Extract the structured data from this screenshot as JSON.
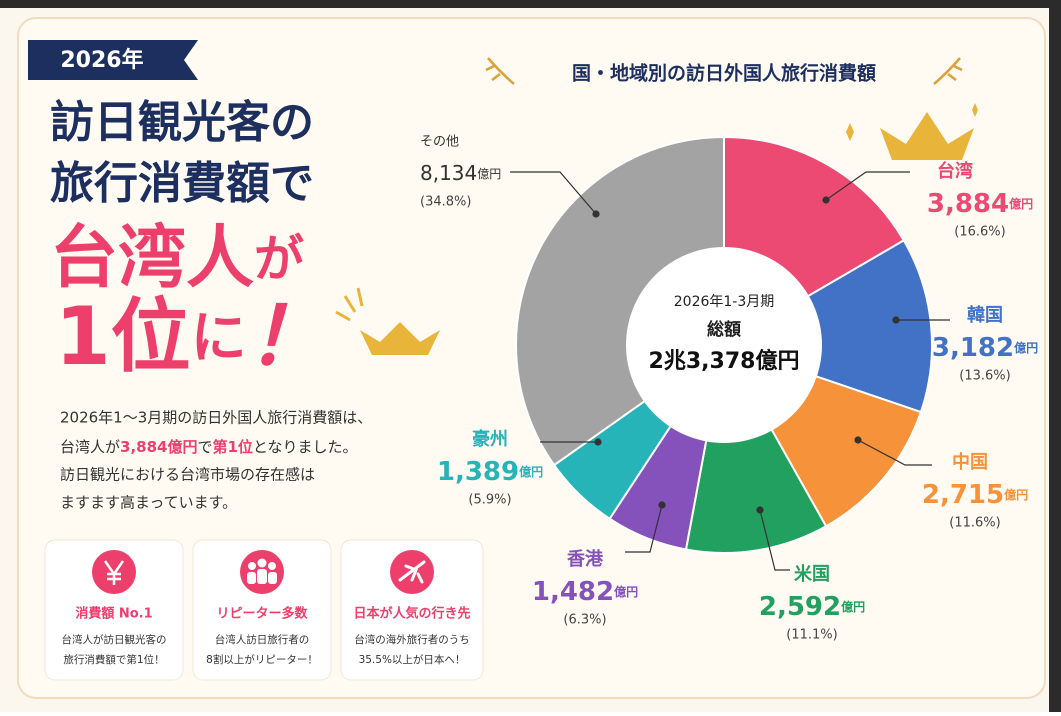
{
  "badge": "2026年",
  "headline": {
    "lines": [
      "訪日観光客の",
      "旅行消費額で"
    ],
    "line3": [
      "台湾人",
      "が"
    ],
    "line4": [
      "1位",
      "に",
      "！"
    ]
  },
  "description": {
    "line1": "2026年1～3月期の訪日外国人旅行消費額は、",
    "line2": [
      "台湾人が",
      "3,884億円",
      "で",
      "第1位",
      "となりました。"
    ],
    "line3": "訪日観光における台湾市場の存在感は",
    "line4": "ますます高まっています。"
  },
  "cards": [
    {
      "title": "消費額 No.1",
      "text": [
        "台湾人が訪日観光客の",
        "旅行消費額で第1位！"
      ]
    },
    {
      "title": "リピーター多数",
      "text": [
        "台湾人訪日旅行者の",
        "8割以上がリピーター！"
      ]
    },
    {
      "title": "日本が人気の行き先",
      "text": [
        "台湾の海外旅行者のうち",
        "35.5%以上が日本へ！"
      ]
    }
  ],
  "chart_data": {
    "type": "pie",
    "title": "国・地域別の訪日外国人旅行消費額",
    "categories": [
      "台湾",
      "韓国",
      "中国",
      "米国",
      "香港",
      "豪州",
      "その他"
    ],
    "values": [
      3884,
      3182,
      2715,
      2592,
      1482,
      1389,
      8134
    ],
    "value_labels": [
      "3,884",
      "3,182",
      "2,715",
      "2,592",
      "1,482",
      "1,389",
      "8,134"
    ],
    "unit": "億円",
    "percent_labels": [
      "(16.6%)",
      "(13.6%)",
      "(11.6%)",
      "(11.1%)",
      "(6.3%)",
      "(5.9%)",
      "(34.8%)"
    ],
    "colors": [
      "#ec4a72",
      "#4272c6",
      "#f6923a",
      "#22a060",
      "#8452ba",
      "#27b4b9",
      "#a3a3a3"
    ],
    "center": {
      "period": "2026年1-3月期",
      "label": "総額",
      "total": "2兆3,378億円"
    }
  }
}
